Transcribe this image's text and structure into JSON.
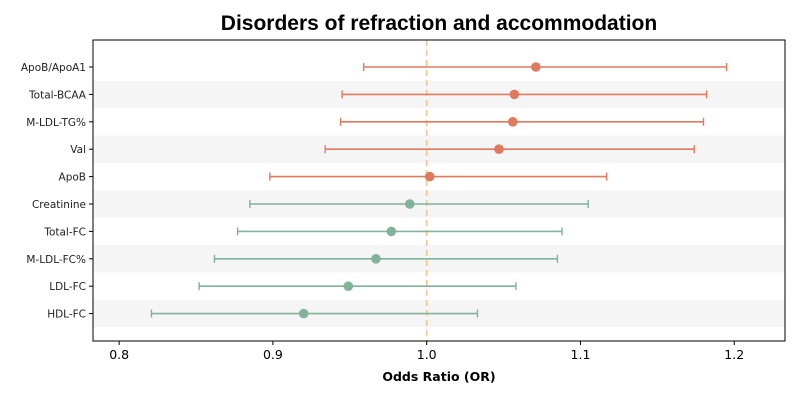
{
  "chart_data": {
    "type": "forest",
    "title": "Disorders of refraction and accommodation",
    "xlabel": "Odds Ratio (OR)",
    "xlim": [
      0.783,
      1.233
    ],
    "xticks": [
      "0.8",
      "0.9",
      "1.0",
      "1.1",
      "1.2"
    ],
    "reference_line": 1.0,
    "grid": false,
    "colors": {
      "risk": "#e07a5f",
      "protective": "#81b29a",
      "reference": "#f2cc8f",
      "band": "#f5f5f5"
    },
    "categories": [
      "ApoB/ApoA1",
      "Total-BCAA",
      "M-LDL-TG%",
      "Val",
      "ApoB",
      "Creatinine",
      "Total-FC",
      "M-LDL-FC%",
      "LDL-FC",
      "HDL-FC"
    ],
    "series": [
      {
        "category": "ApoB/ApoA1",
        "or": 1.071,
        "lower": 0.959,
        "upper": 1.195
      },
      {
        "category": "Total-BCAA",
        "or": 1.057,
        "lower": 0.945,
        "upper": 1.182
      },
      {
        "category": "M-LDL-TG%",
        "or": 1.056,
        "lower": 0.944,
        "upper": 1.18
      },
      {
        "category": "Val",
        "or": 1.047,
        "lower": 0.934,
        "upper": 1.174
      },
      {
        "category": "ApoB",
        "or": 1.002,
        "lower": 0.898,
        "upper": 1.117
      },
      {
        "category": "Creatinine",
        "or": 0.989,
        "lower": 0.885,
        "upper": 1.105
      },
      {
        "category": "Total-FC",
        "or": 0.977,
        "lower": 0.877,
        "upper": 1.088
      },
      {
        "category": "M-LDL-FC%",
        "or": 0.967,
        "lower": 0.862,
        "upper": 1.085
      },
      {
        "category": "LDL-FC",
        "or": 0.949,
        "lower": 0.852,
        "upper": 1.058
      },
      {
        "category": "HDL-FC",
        "or": 0.92,
        "lower": 0.821,
        "upper": 1.033
      }
    ]
  }
}
